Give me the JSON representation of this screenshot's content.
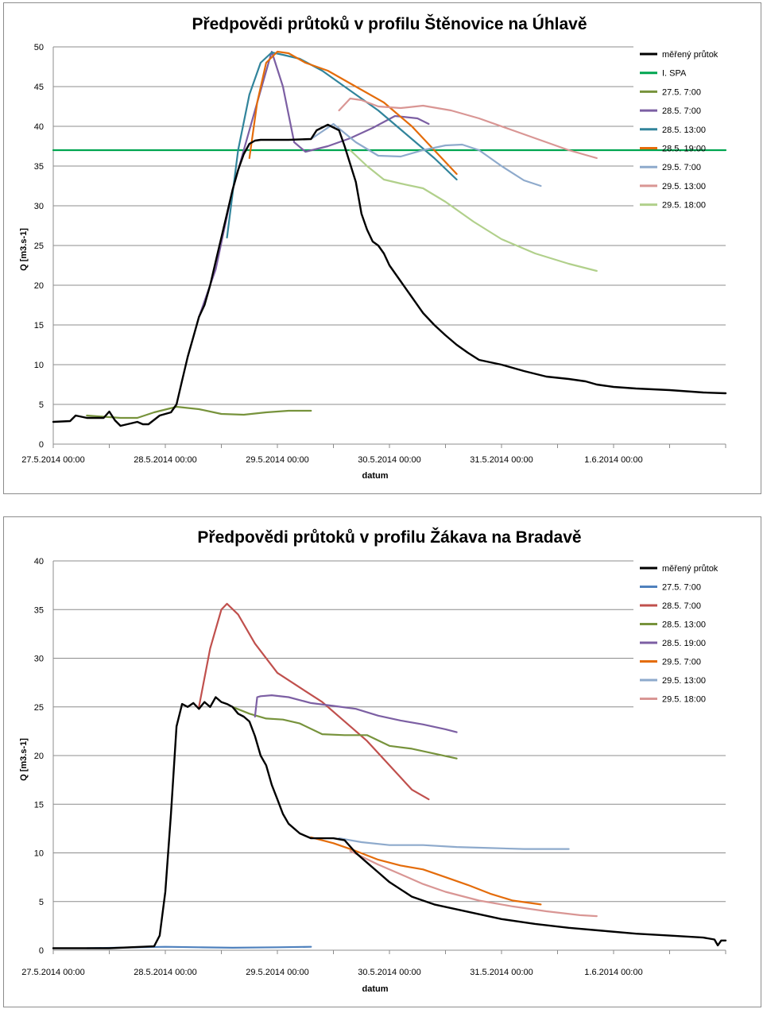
{
  "chart_data": [
    {
      "type": "line",
      "title": "Předpovědi průtoků v profilu Štěnovice na Úhlavě",
      "xlabel": "datum",
      "ylabel": "Q [m3.s-1]",
      "ylim": [
        0,
        50
      ],
      "yticks": [
        "0",
        "5",
        "10",
        "15",
        "20",
        "25",
        "30",
        "35",
        "40",
        "45",
        "50"
      ],
      "xlim": [
        0,
        6
      ],
      "xtick_labels": [
        "27.5.2014 00:00",
        "28.5.2014 00:00",
        "29.5.2014 00:00",
        "30.5.2014 00:00",
        "31.5.2014 00:00",
        "1.6.2014 00:00"
      ],
      "grid": "horizontal",
      "legend_position": "top-right",
      "series": [
        {
          "name": "měřený průtok",
          "color": "#000000",
          "x": [
            0,
            0.15,
            0.2,
            0.3,
            0.45,
            0.5,
            0.55,
            0.6,
            0.75,
            0.8,
            0.85,
            0.95,
            1.05,
            1.1,
            1.15,
            1.2,
            1.25,
            1.3,
            1.35,
            1.4,
            1.45,
            1.5,
            1.55,
            1.6,
            1.65,
            1.7,
            1.75,
            1.8,
            1.85,
            1.9,
            2.0,
            2.1,
            2.3,
            2.35,
            2.45,
            2.55,
            2.6,
            2.7,
            2.75,
            2.8,
            2.85,
            2.9,
            2.95,
            3.0,
            3.1,
            3.2,
            3.3,
            3.4,
            3.5,
            3.6,
            3.7,
            3.8,
            3.9,
            4.0,
            4.2,
            4.4,
            4.6,
            4.75,
            4.85,
            5.0,
            5.2,
            5.5,
            5.8,
            6.0
          ],
          "y": [
            2.8,
            2.9,
            3.6,
            3.3,
            3.3,
            4.1,
            3.0,
            2.3,
            2.8,
            2.5,
            2.5,
            3.6,
            4.0,
            5.0,
            8.0,
            11.0,
            13.5,
            16.0,
            17.5,
            20.0,
            23.0,
            26.0,
            29.0,
            32.0,
            34.5,
            36.5,
            37.8,
            38.2,
            38.3,
            38.3,
            38.3,
            38.3,
            38.4,
            39.5,
            40.2,
            39.5,
            37.5,
            33.0,
            29.0,
            27.0,
            25.5,
            25.0,
            24.0,
            22.5,
            20.5,
            18.5,
            16.5,
            15.0,
            13.7,
            12.5,
            11.5,
            10.6,
            10.3,
            10.0,
            9.2,
            8.5,
            8.2,
            7.9,
            7.5,
            7.2,
            7.0,
            6.8,
            6.5,
            6.4
          ]
        },
        {
          "name": "I. SPA",
          "color": "#00a550",
          "x": [
            0,
            6
          ],
          "y": [
            37,
            37
          ]
        },
        {
          "name": "27.5. 7:00",
          "color": "#77933c",
          "x": [
            0.3,
            0.6,
            0.75,
            0.9,
            1.1,
            1.3,
            1.5,
            1.7,
            1.9,
            2.1,
            2.3
          ],
          "y": [
            3.6,
            3.3,
            3.3,
            4.0,
            4.7,
            4.4,
            3.8,
            3.7,
            4.0,
            4.2,
            4.2
          ]
        },
        {
          "name": "28.5. 7:00",
          "color": "#7c5fa3",
          "x": [
            1.3,
            1.45,
            1.6,
            1.8,
            1.95,
            2.05,
            2.15,
            2.25,
            2.45,
            2.65,
            2.85,
            3.05,
            3.25,
            3.35
          ],
          "y": [
            16.0,
            22.0,
            32.0,
            42.0,
            49.4,
            45.0,
            38.0,
            36.8,
            37.5,
            38.5,
            39.8,
            41.3,
            41.0,
            40.3
          ]
        },
        {
          "name": "28.5. 13:00",
          "color": "#31849b",
          "x": [
            1.55,
            1.65,
            1.75,
            1.85,
            1.95,
            2.05,
            2.2,
            2.4,
            2.65,
            2.9,
            3.15,
            3.4,
            3.6
          ],
          "y": [
            26.0,
            37.0,
            44.0,
            48.0,
            49.3,
            49.0,
            48.5,
            47.0,
            44.5,
            42.0,
            39.0,
            36.0,
            33.3
          ]
        },
        {
          "name": "28.5. 19:00",
          "color": "#e46c0a",
          "x": [
            1.75,
            1.82,
            1.9,
            2.0,
            2.1,
            2.25,
            2.45,
            2.7,
            2.95,
            3.2,
            3.4,
            3.6
          ],
          "y": [
            36.0,
            43.0,
            48.0,
            49.4,
            49.2,
            48.0,
            47.0,
            45.0,
            43.0,
            40.0,
            37.0,
            34.0
          ]
        },
        {
          "name": "29.5. 7:00",
          "color": "#8eaacc",
          "x": [
            2.3,
            2.5,
            2.7,
            2.9,
            3.1,
            3.3,
            3.5,
            3.65,
            3.8,
            4.0,
            4.2,
            4.35
          ],
          "y": [
            38.4,
            40.3,
            38.0,
            36.3,
            36.2,
            37.0,
            37.6,
            37.7,
            37.0,
            35.0,
            33.2,
            32.5
          ]
        },
        {
          "name": "29.5. 13:00",
          "color": "#d99694",
          "x": [
            2.55,
            2.65,
            2.75,
            2.9,
            3.1,
            3.3,
            3.55,
            3.8,
            4.1,
            4.4,
            4.6,
            4.85
          ],
          "y": [
            42.0,
            43.5,
            43.3,
            42.5,
            42.3,
            42.6,
            42.0,
            41.0,
            39.5,
            38.0,
            37.0,
            36.0
          ]
        },
        {
          "name": "29.5. 18:00",
          "color": "#b1d08b",
          "x": [
            2.65,
            2.8,
            2.95,
            3.1,
            3.3,
            3.5,
            3.75,
            4.0,
            4.3,
            4.6,
            4.85
          ],
          "y": [
            37.0,
            35.0,
            33.3,
            32.8,
            32.2,
            30.5,
            28.0,
            25.8,
            24.0,
            22.7,
            21.8
          ]
        }
      ]
    },
    {
      "type": "line",
      "title": "Předpovědi průtoků v profilu Žákava na Bradavě",
      "xlabel": "datum",
      "ylabel": "Q [m3.s-1]",
      "ylim": [
        0,
        40
      ],
      "yticks": [
        "0",
        "5",
        "10",
        "15",
        "20",
        "25",
        "30",
        "35",
        "40"
      ],
      "xlim": [
        0,
        6
      ],
      "xtick_labels": [
        "27.5.2014 00:00",
        "28.5.2014 00:00",
        "29.5.2014 00:00",
        "30.5.2014 00:00",
        "31.5.2014 00:00",
        "1.6.2014 00:00"
      ],
      "grid": "horizontal",
      "legend_position": "top-right",
      "series": [
        {
          "name": "měřený průtok",
          "color": "#000000",
          "x": [
            0,
            0.5,
            0.9,
            0.95,
            1.0,
            1.05,
            1.1,
            1.15,
            1.2,
            1.25,
            1.3,
            1.35,
            1.4,
            1.45,
            1.5,
            1.55,
            1.6,
            1.65,
            1.7,
            1.75,
            1.8,
            1.85,
            1.9,
            1.95,
            2.0,
            2.05,
            2.1,
            2.2,
            2.3,
            2.4,
            2.5,
            2.6,
            2.7,
            2.8,
            2.9,
            3.0,
            3.2,
            3.4,
            3.6,
            3.8,
            4.0,
            4.3,
            4.6,
            4.9,
            5.2,
            5.5,
            5.8,
            5.9,
            5.93,
            5.96,
            6.0
          ],
          "y": [
            0.2,
            0.2,
            0.4,
            1.5,
            6.0,
            14.0,
            23.0,
            25.3,
            25.0,
            25.4,
            24.8,
            25.5,
            25.0,
            26.0,
            25.5,
            25.3,
            25.0,
            24.3,
            24.0,
            23.5,
            22.0,
            20.0,
            19.0,
            17.0,
            15.5,
            14.0,
            13.0,
            12.0,
            11.5,
            11.5,
            11.5,
            11.3,
            10.0,
            9.0,
            8.0,
            7.0,
            5.5,
            4.7,
            4.2,
            3.7,
            3.2,
            2.7,
            2.3,
            2.0,
            1.7,
            1.5,
            1.3,
            1.1,
            0.5,
            1.0,
            1.0
          ]
        },
        {
          "name": "27.5. 7:00",
          "color": "#4f81bd",
          "x": [
            0.3,
            1.0,
            1.3,
            1.6,
            2.0,
            2.3
          ],
          "y": [
            0.2,
            0.35,
            0.3,
            0.25,
            0.3,
            0.35
          ]
        },
        {
          "name": "28.5. 7:00",
          "color": "#c0504d",
          "x": [
            1.3,
            1.4,
            1.5,
            1.55,
            1.65,
            1.8,
            2.0,
            2.2,
            2.4,
            2.6,
            2.8,
            3.0,
            3.2,
            3.35
          ],
          "y": [
            25.0,
            31.0,
            35.0,
            35.6,
            34.5,
            31.5,
            28.5,
            27.0,
            25.5,
            23.5,
            21.5,
            19.0,
            16.5,
            15.5
          ]
        },
        {
          "name": "28.5. 13:00",
          "color": "#77933c",
          "x": [
            1.6,
            1.75,
            1.9,
            2.05,
            2.2,
            2.4,
            2.6,
            2.8,
            3.0,
            3.2,
            3.4,
            3.6
          ],
          "y": [
            25.0,
            24.3,
            23.8,
            23.7,
            23.3,
            22.2,
            22.1,
            22.1,
            21.0,
            20.7,
            20.2,
            19.7
          ]
        },
        {
          "name": "28.5. 19:00",
          "color": "#7c5fa3",
          "x": [
            1.8,
            1.82,
            1.85,
            1.95,
            2.1,
            2.3,
            2.5,
            2.7,
            2.9,
            3.1,
            3.3,
            3.5,
            3.6
          ],
          "y": [
            24.0,
            26.0,
            26.1,
            26.2,
            26.0,
            25.4,
            25.1,
            24.8,
            24.1,
            23.6,
            23.2,
            22.7,
            22.4
          ]
        },
        {
          "name": "29.5. 7:00",
          "color": "#e46c0a",
          "x": [
            2.3,
            2.5,
            2.7,
            2.9,
            3.1,
            3.3,
            3.5,
            3.7,
            3.9,
            4.1,
            4.35
          ],
          "y": [
            11.6,
            11.0,
            10.2,
            9.3,
            8.7,
            8.3,
            7.5,
            6.7,
            5.8,
            5.1,
            4.7
          ]
        },
        {
          "name": "29.5. 13:00",
          "color": "#8eaacc",
          "x": [
            2.55,
            2.75,
            3.0,
            3.3,
            3.6,
            3.9,
            4.2,
            4.5,
            4.6
          ],
          "y": [
            11.5,
            11.1,
            10.8,
            10.8,
            10.6,
            10.5,
            10.4,
            10.4,
            10.4
          ]
        },
        {
          "name": "29.5. 18:00",
          "color": "#d99694",
          "x": [
            2.65,
            2.9,
            3.1,
            3.3,
            3.5,
            3.8,
            4.1,
            4.4,
            4.7,
            4.85
          ],
          "y": [
            10.2,
            8.8,
            7.8,
            6.8,
            6.0,
            5.1,
            4.5,
            4.0,
            3.6,
            3.5
          ]
        }
      ]
    }
  ]
}
